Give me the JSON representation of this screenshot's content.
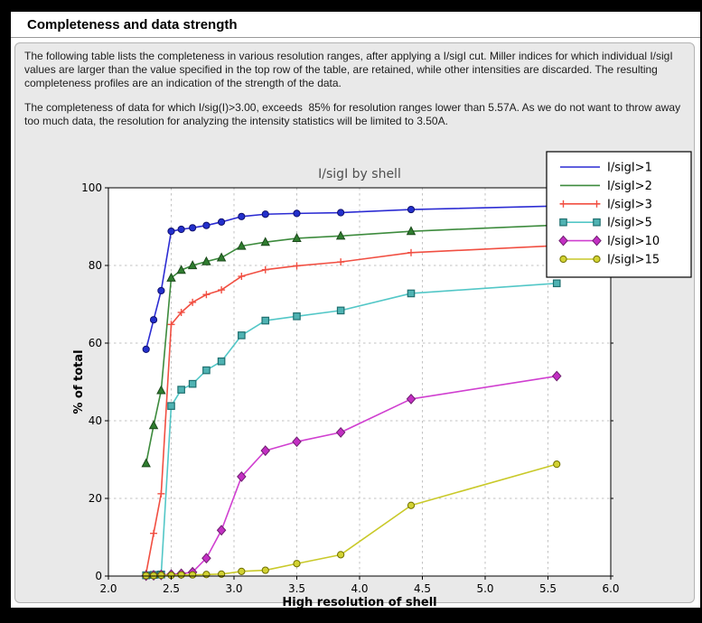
{
  "window": {
    "title": "Completeness and data strength"
  },
  "paragraphs": [
    "The following table lists the completeness in various resolution ranges, after applying a I/sigI cut. Miller indices for which individual I/sigI values are larger than the value specified in the top row of the table, are retained, while other intensities are discarded. The resulting completeness profiles are an indication of the strength of the data.",
    "The completeness of data for which I/sig(I)>3.00, exceeds  85% for resolution ranges lower than 5.57A. As we do not want to throw away too much data, the resolution for analyzing the intensity statistics will be limited to 3.50A."
  ],
  "chart_data": {
    "type": "line",
    "title": "I/sigI by shell",
    "xlabel": "High resolution of shell",
    "ylabel": "% of total",
    "xlim": [
      2.0,
      6.0
    ],
    "ylim": [
      0,
      100
    ],
    "xticks": [
      "2.0",
      "2.5",
      "3.0",
      "3.5",
      "4.0",
      "4.5",
      "5.0",
      "5.5",
      "6.0"
    ],
    "yticks": [
      "0",
      "20",
      "40",
      "60",
      "80",
      "100"
    ],
    "grid": true,
    "grid_color": "#c2c2c2",
    "plot_bg": "#ffffff",
    "figure_bg": "#e9e9e9",
    "title_color": "#4f4f4f",
    "legend_position": "top-right",
    "x": [
      2.3,
      2.36,
      2.42,
      2.5,
      2.58,
      2.67,
      2.78,
      2.9,
      3.06,
      3.25,
      3.5,
      3.85,
      4.41,
      5.57
    ],
    "series": [
      {
        "name": "I/sigI>1",
        "color": "#2c2cd3",
        "fill": "#2330cc",
        "edge": "#10106e",
        "marker": "circle",
        "legend_marker": false,
        "values": [
          58.4,
          66.0,
          73.5,
          88.8,
          89.3,
          89.7,
          90.3,
          91.2,
          92.6,
          93.2,
          93.4,
          93.6,
          94.4,
          95.3
        ]
      },
      {
        "name": "I/sigI>2",
        "color": "#3d8b3d",
        "fill": "#2f7d2f",
        "edge": "#1c4a1c",
        "marker": "triangle",
        "legend_marker": false,
        "values": [
          29.0,
          38.8,
          47.8,
          76.8,
          78.8,
          80.0,
          81.0,
          82.0,
          85.0,
          86.0,
          87.0,
          87.6,
          88.8,
          90.4
        ]
      },
      {
        "name": "I/sigI>3",
        "color": "#f14f42",
        "fill": "#f14f42",
        "edge": "#f14f42",
        "marker": "plus",
        "legend_marker": true,
        "values": [
          0.7,
          11.0,
          21.2,
          64.8,
          67.9,
          70.5,
          72.5,
          73.7,
          77.2,
          78.9,
          79.9,
          80.9,
          83.3,
          85.1
        ]
      },
      {
        "name": "I/sigI>5",
        "color": "#53c7c7",
        "fill": "#4fb3b3",
        "edge": "#1f6f6f",
        "marker": "square",
        "legend_marker": true,
        "values": [
          0.2,
          0.3,
          0.4,
          43.8,
          48.0,
          49.5,
          53.0,
          55.3,
          62.0,
          65.8,
          66.9,
          68.4,
          72.8,
          75.4
        ]
      },
      {
        "name": "I/sigI>10",
        "color": "#d03fd0",
        "fill": "#c32fc3",
        "edge": "#6e1f6e",
        "marker": "diamond",
        "legend_marker": true,
        "values": [
          0.1,
          0.2,
          0.3,
          0.4,
          0.6,
          1.0,
          4.6,
          11.8,
          25.6,
          32.3,
          34.6,
          37.0,
          45.6,
          51.5
        ]
      },
      {
        "name": "I/sigI>15",
        "color": "#c9c929",
        "fill": "#d2d232",
        "edge": "#6f6f00",
        "marker": "circle",
        "legend_marker": true,
        "values": [
          0.1,
          0.1,
          0.2,
          0.2,
          0.3,
          0.3,
          0.4,
          0.5,
          1.2,
          1.5,
          3.2,
          5.5,
          18.2,
          28.8
        ]
      }
    ]
  }
}
